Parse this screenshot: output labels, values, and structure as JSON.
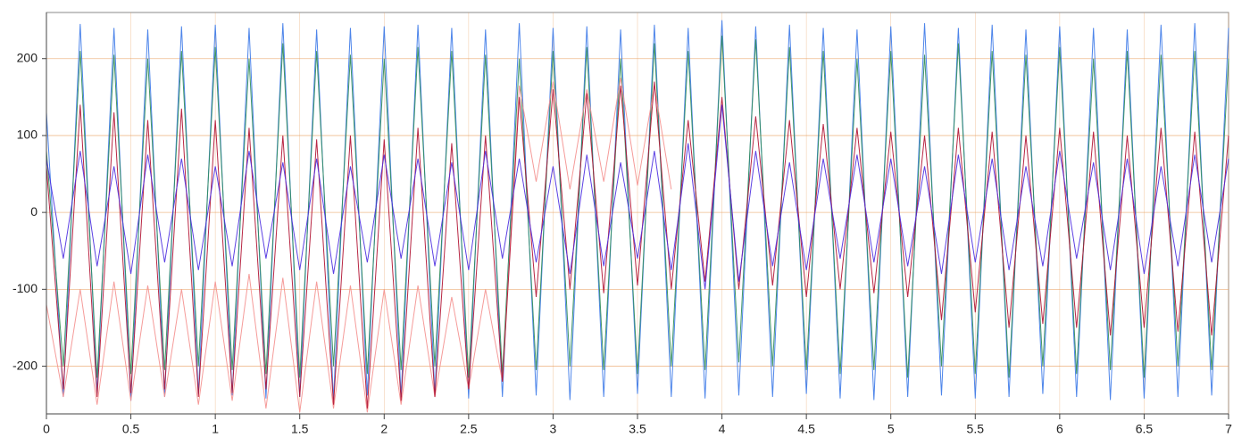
{
  "chart_data": {
    "type": "line",
    "x": [
      0,
      0.1,
      0.2,
      0.3,
      0.4,
      0.5,
      0.6,
      0.7,
      0.8,
      0.9,
      1,
      1.1,
      1.2,
      1.3,
      1.4,
      1.5,
      1.6,
      1.7,
      1.8,
      1.9,
      2,
      2.1,
      2.2,
      2.3,
      2.4,
      2.5,
      2.6,
      2.7,
      2.8,
      2.9,
      3,
      3.1,
      3.2,
      3.3,
      3.4,
      3.5,
      3.6,
      3.7,
      3.8,
      3.9,
      4,
      4.1,
      4.2,
      4.3,
      4.4,
      4.5,
      4.6,
      4.7,
      4.8,
      4.9,
      5,
      5.1,
      5.2,
      5.3,
      5.4,
      5.5,
      5.6,
      5.7,
      5.8,
      5.9,
      6,
      6.1,
      6.2,
      6.3,
      6.4,
      6.5,
      6.6,
      6.7,
      6.8,
      6.9,
      7
    ],
    "series": [
      {
        "color": "#3a78e8",
        "values": [
          130,
          -240,
          245,
          -235,
          240,
          -245,
          238,
          -240,
          242,
          -236,
          244,
          -238,
          240,
          -242,
          246,
          -240,
          238,
          -244,
          240,
          -238,
          242,
          -240,
          244,
          -236,
          240,
          -242,
          238,
          -240,
          246,
          -238,
          240,
          -244,
          242,
          -240,
          238,
          -236,
          244,
          -240,
          240,
          -242,
          250,
          -238,
          242,
          -240,
          244,
          -236,
          240,
          -242,
          238,
          -244,
          242,
          -240,
          246,
          -238,
          240,
          -242,
          244,
          -240,
          238,
          -236,
          242,
          -240,
          240,
          -244,
          238,
          -242,
          244,
          -240,
          246,
          -238,
          240
        ]
      },
      {
        "color": "#2e8b57",
        "values": [
          80,
          -200,
          210,
          -215,
          205,
          -210,
          200,
          -205,
          210,
          -200,
          215,
          -205,
          200,
          -210,
          220,
          -215,
          210,
          -200,
          205,
          -210,
          200,
          -205,
          215,
          -200,
          210,
          -215,
          205,
          -210,
          200,
          -205,
          210,
          -200,
          215,
          -205,
          200,
          -210,
          220,
          -200,
          210,
          -205,
          230,
          -195,
          225,
          -200,
          215,
          -205,
          210,
          -210,
          200,
          -205,
          210,
          -215,
          205,
          -200,
          220,
          -210,
          210,
          -215,
          205,
          -200,
          215,
          -210,
          200,
          -205,
          210,
          -215,
          205,
          -200,
          210,
          -205,
          200
        ]
      },
      {
        "color": "#f4908e",
        "values": [
          -120,
          -240,
          -100,
          -250,
          -90,
          -245,
          -95,
          -240,
          -100,
          -250,
          -90,
          -245,
          -80,
          -255,
          -85,
          -260,
          -90,
          -255,
          -95,
          -260,
          -100,
          -250,
          -95,
          -240,
          -110,
          -230,
          -100,
          -220,
          165,
          40,
          170,
          30,
          160,
          40,
          175,
          35,
          165,
          30,
          null,
          null,
          null,
          null,
          null,
          null,
          null,
          null,
          null,
          null,
          null,
          null,
          null,
          null,
          null,
          null,
          null,
          null,
          null,
          null,
          null,
          null,
          null,
          null,
          null,
          null,
          null,
          null,
          null,
          null,
          null,
          null,
          null
        ]
      },
      {
        "color": "#b01030",
        "values": [
          60,
          -230,
          140,
          -240,
          130,
          -235,
          120,
          -230,
          135,
          -240,
          120,
          -235,
          110,
          -230,
          100,
          -240,
          95,
          -250,
          100,
          -255,
          95,
          -245,
          110,
          -240,
          90,
          -230,
          100,
          -220,
          150,
          -110,
          160,
          -100,
          155,
          -105,
          165,
          -95,
          170,
          -100,
          120,
          -90,
          150,
          -100,
          125,
          -95,
          120,
          -110,
          115,
          -100,
          110,
          -105,
          105,
          -110,
          100,
          -140,
          110,
          -130,
          105,
          -150,
          100,
          -145,
          110,
          -150,
          105,
          -160,
          100,
          -150,
          110,
          -155,
          105,
          -160,
          100
        ]
      },
      {
        "color": "#4a2ce0",
        "values": [
          70,
          -60,
          80,
          -70,
          60,
          -80,
          75,
          -65,
          70,
          -75,
          60,
          -70,
          80,
          -60,
          65,
          -75,
          70,
          -80,
          60,
          -65,
          75,
          -60,
          70,
          -70,
          65,
          -75,
          80,
          -60,
          70,
          -65,
          60,
          -80,
          75,
          -70,
          65,
          -60,
          80,
          -75,
          90,
          -100,
          140,
          -90,
          80,
          -70,
          65,
          -75,
          70,
          -60,
          75,
          -65,
          70,
          -70,
          60,
          -80,
          75,
          -65,
          70,
          -75,
          60,
          -70,
          80,
          -60,
          65,
          -75,
          70,
          -80,
          60,
          -70,
          75,
          -65,
          70
        ]
      }
    ],
    "xlim": [
      0,
      7
    ],
    "xticks": [
      0,
      0.5,
      1,
      1.5,
      2,
      2.5,
      3,
      3.5,
      4,
      4.5,
      5,
      5.5,
      6,
      6.5,
      7
    ],
    "ylim": [
      -262,
      260
    ],
    "yticks": [
      -200,
      -100,
      0,
      100,
      200
    ],
    "grid": true
  }
}
